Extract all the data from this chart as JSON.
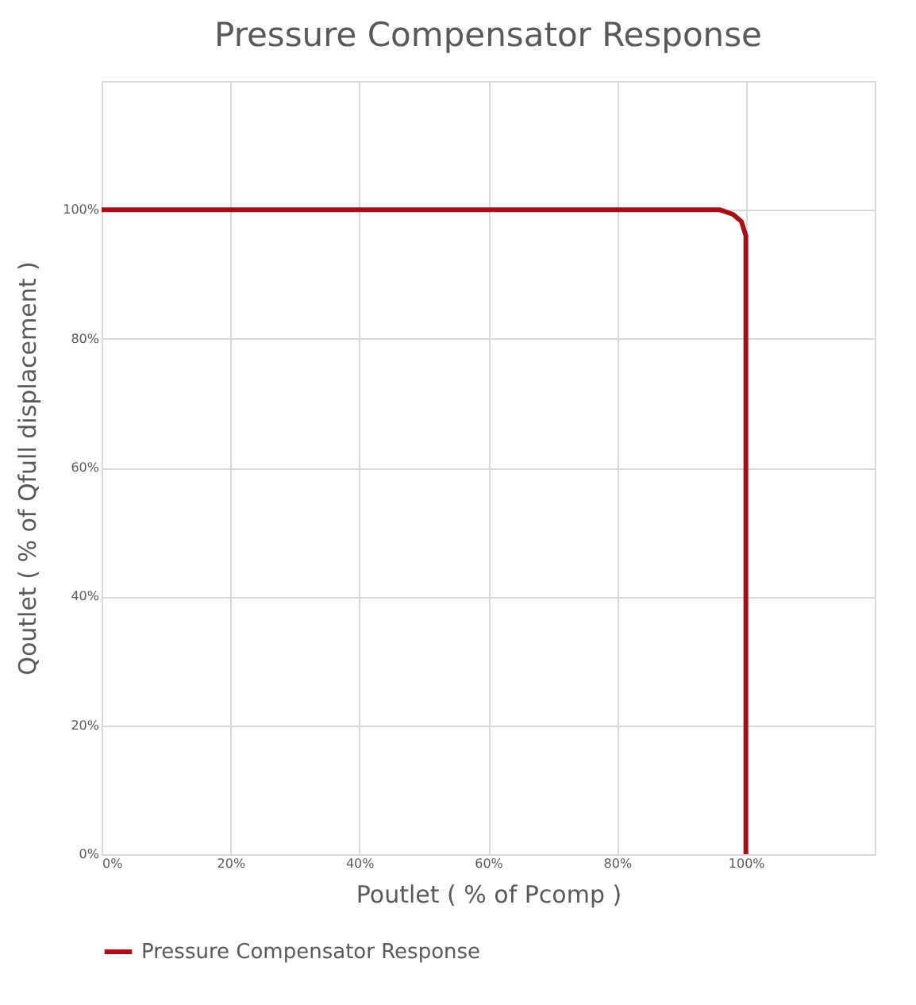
{
  "chart_data": {
    "type": "line",
    "title": "Pressure Compensator Response",
    "xlabel": "Poutlet ( % of Pcomp )",
    "ylabel": "Qoutlet ( % of Qfull displacement )",
    "series": [
      {
        "name": "Pressure Compensator Response",
        "color": "#a50f15",
        "x": [
          0,
          96,
          98,
          99.3,
          100,
          100
        ],
        "values": [
          100,
          100,
          99.3,
          98.2,
          96,
          0
        ]
      }
    ],
    "xlim": [
      0,
      120
    ],
    "ylim": [
      0,
      120
    ],
    "xticks": [
      {
        "value": 0,
        "label": "0%"
      },
      {
        "value": 20,
        "label": "20%"
      },
      {
        "value": 40,
        "label": "40%"
      },
      {
        "value": 60,
        "label": "60%"
      },
      {
        "value": 80,
        "label": "80%"
      },
      {
        "value": 100,
        "label": "100%"
      },
      {
        "value": 120,
        "label": null
      }
    ],
    "yticks": [
      {
        "value": 0,
        "label": "0%"
      },
      {
        "value": 20,
        "label": "20%"
      },
      {
        "value": 40,
        "label": "40%"
      },
      {
        "value": 60,
        "label": "60%"
      },
      {
        "value": 80,
        "label": "80%"
      },
      {
        "value": 100,
        "label": "100%"
      },
      {
        "value": 120,
        "label": null
      }
    ],
    "grid": true,
    "legend": "bottom",
    "marker": "none",
    "line_style": "solid"
  }
}
